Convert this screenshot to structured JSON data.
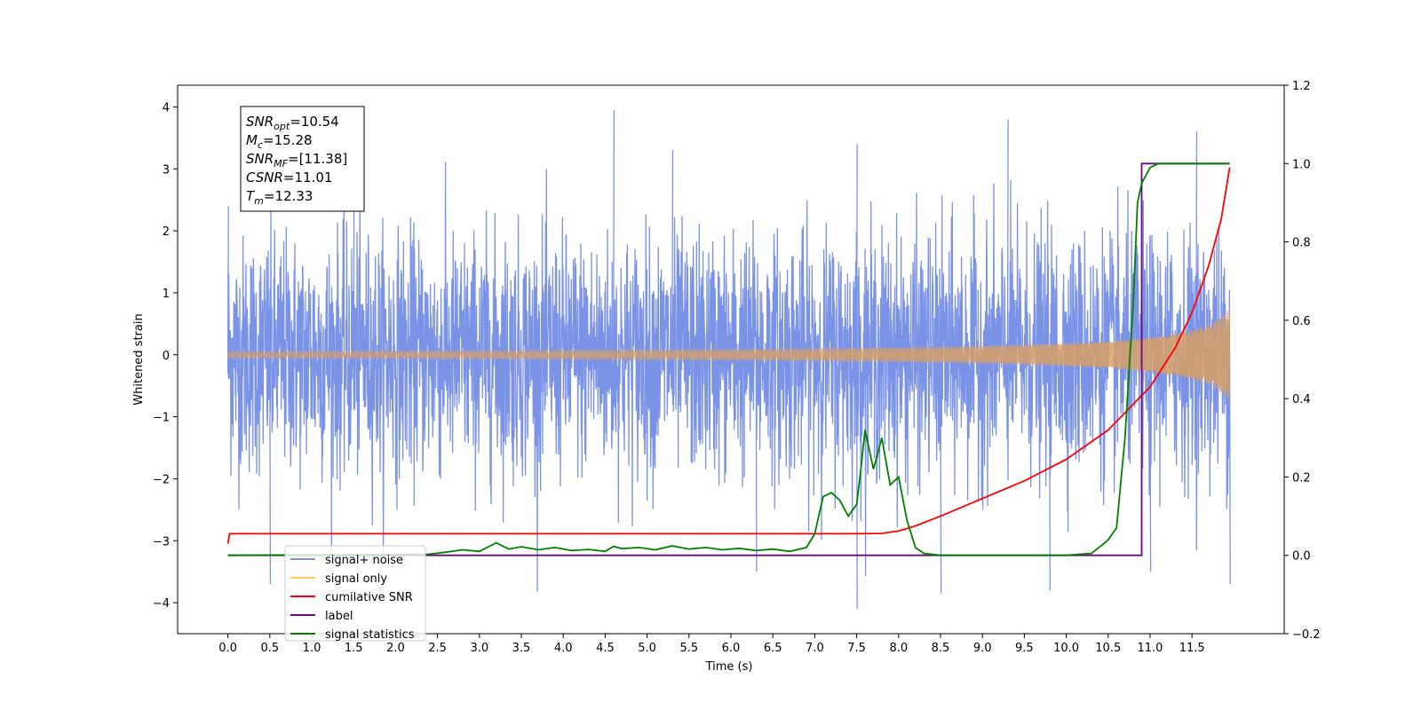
{
  "chart_data": {
    "type": "line",
    "xlabel": "Time (s)",
    "ylabel": "Whitened strain",
    "xlim": [
      -0.6,
      12.6
    ],
    "ylim": [
      -4.5,
      4.35
    ],
    "ylim_right": [
      -0.2,
      1.2
    ],
    "x_ticks": [
      "0.0",
      "0.5",
      "1.0",
      "1.5",
      "2.0",
      "2.5",
      "3.0",
      "3.5",
      "4.0",
      "4.5",
      "5.0",
      "5.5",
      "6.0",
      "6.5",
      "7.0",
      "7.5",
      "8.0",
      "8.5",
      "9.0",
      "9.5",
      "10.0",
      "10.5",
      "11.0",
      "11.5"
    ],
    "y_ticks_left": [
      "4",
      "3",
      "2",
      "1",
      "0",
      "−1",
      "−2",
      "−3",
      "−4"
    ],
    "y_ticks_right": [
      "1.2",
      "1.0",
      "0.8",
      "0.6",
      "0.4",
      "0.2",
      "0.0",
      "−0.2"
    ],
    "annotation": {
      "lines": [
        {
          "sym": "SNR",
          "sub": "opt",
          "value": "=10.54"
        },
        {
          "sym": "M",
          "sub": "c",
          "value": "=15.28"
        },
        {
          "sym": "SNR",
          "sub": "MF",
          "value": "=[11.38]"
        },
        {
          "sym": "CSNR",
          "sub": "",
          "value": "=11.01"
        },
        {
          "sym": "T",
          "sub": "m",
          "value": "=12.33"
        }
      ]
    },
    "legend": {
      "placement": "lower-left",
      "entries": [
        {
          "label": "signal+ noise",
          "color": "#7b93e6"
        },
        {
          "label": "signal only",
          "color": "#ffc766"
        },
        {
          "label": "cumilative SNR",
          "color": "#ff0000"
        },
        {
          "label": "label",
          "color": "#6a0a80"
        },
        {
          "label": "signal statistics",
          "color": "#008000"
        }
      ]
    },
    "series": [
      {
        "name": "signal+ noise",
        "axis": "left",
        "color": "#7b93e6",
        "noise_envelope": {
          "x": [
            0,
            11.95
          ],
          "typical_max": 3.0,
          "typical_min": -3.0
        },
        "peaks": [
          [
            0.0,
            2.4
          ],
          [
            0.5,
            -3.7
          ],
          [
            1.5,
            3.4
          ],
          [
            4.6,
            3.95
          ],
          [
            5.3,
            3.3
          ],
          [
            6.3,
            -3.5
          ],
          [
            7.5,
            3.4
          ],
          [
            7.5,
            -4.1
          ],
          [
            8.5,
            -3.85
          ],
          [
            9.3,
            3.8
          ],
          [
            9.8,
            -3.8
          ],
          [
            11.0,
            -3.5
          ],
          [
            11.55,
            3.6
          ],
          [
            11.95,
            -3.7
          ]
        ]
      },
      {
        "name": "signal only",
        "axis": "left",
        "color": "#d9a066",
        "chirp": {
          "start": 0.0,
          "end": 11.95,
          "amplitude_end": 0.75
        }
      },
      {
        "name": "cumilative SNR",
        "axis": "right",
        "color": "#ff0000",
        "x": [
          0.0,
          0.02,
          7.5,
          7.8,
          8.0,
          8.2,
          8.5,
          9.0,
          9.5,
          10.0,
          10.5,
          11.0,
          11.3,
          11.5,
          11.7,
          11.85,
          11.95
        ],
        "y": [
          0.03,
          0.055,
          0.055,
          0.056,
          0.062,
          0.075,
          0.1,
          0.145,
          0.19,
          0.245,
          0.32,
          0.43,
          0.53,
          0.62,
          0.74,
          0.86,
          0.99
        ]
      },
      {
        "name": "label",
        "axis": "right",
        "color": "#6a0a80",
        "x": [
          0.0,
          10.9,
          10.9,
          11.95
        ],
        "y": [
          0.0,
          0.0,
          1.0,
          1.0
        ]
      },
      {
        "name": "signal statistics",
        "axis": "right",
        "color": "#008000",
        "x": [
          0.0,
          2.4,
          2.6,
          2.8,
          3.0,
          3.2,
          3.35,
          3.5,
          3.7,
          3.9,
          4.1,
          4.3,
          4.5,
          4.6,
          4.7,
          4.9,
          5.1,
          5.3,
          5.5,
          5.7,
          5.9,
          6.1,
          6.3,
          6.5,
          6.7,
          6.9,
          7.0,
          7.1,
          7.2,
          7.3,
          7.4,
          7.5,
          7.55,
          7.6,
          7.7,
          7.8,
          7.9,
          8.0,
          8.1,
          8.2,
          8.3,
          8.5,
          9.0,
          10.0,
          10.3,
          10.45,
          10.5,
          10.6,
          10.7,
          10.8,
          10.85,
          10.9,
          10.95,
          11.0,
          11.1,
          11.3,
          11.95
        ],
        "y": [
          0.0,
          0.003,
          0.008,
          0.014,
          0.01,
          0.032,
          0.016,
          0.022,
          0.014,
          0.02,
          0.012,
          0.015,
          0.01,
          0.023,
          0.017,
          0.02,
          0.014,
          0.024,
          0.016,
          0.02,
          0.014,
          0.018,
          0.012,
          0.016,
          0.01,
          0.02,
          0.055,
          0.15,
          0.16,
          0.14,
          0.1,
          0.13,
          0.22,
          0.32,
          0.22,
          0.3,
          0.18,
          0.2,
          0.09,
          0.02,
          0.005,
          0.0,
          0.0,
          0.0,
          0.005,
          0.03,
          0.04,
          0.07,
          0.3,
          0.65,
          0.9,
          0.95,
          0.97,
          0.99,
          1.0,
          1.0,
          1.0
        ]
      }
    ]
  }
}
